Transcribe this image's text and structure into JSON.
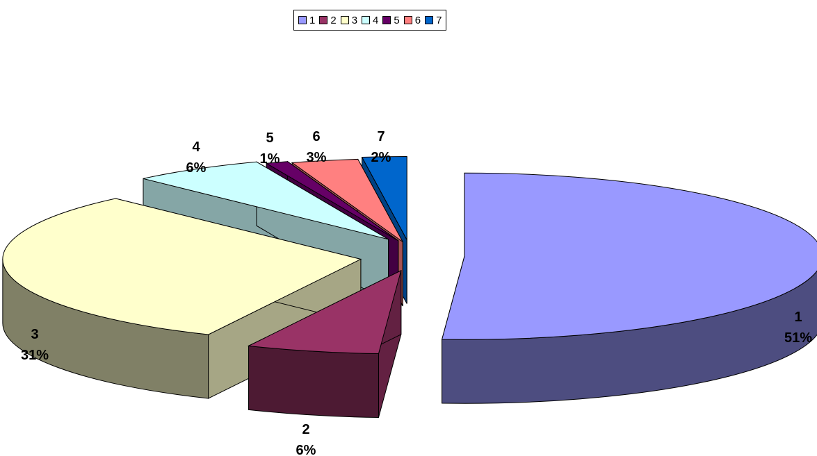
{
  "chart_data": {
    "type": "pie",
    "title": "",
    "three_d": true,
    "exploded": true,
    "legend_position": "top",
    "slices": [
      {
        "label": "1",
        "percent": 51,
        "percent_label": "51%",
        "color": "#9999ff"
      },
      {
        "label": "2",
        "percent": 6,
        "percent_label": "6%",
        "color": "#993366"
      },
      {
        "label": "3",
        "percent": 31,
        "percent_label": "31%",
        "color": "#ffffcc"
      },
      {
        "label": "4",
        "percent": 6,
        "percent_label": "6%",
        "color": "#ccffff"
      },
      {
        "label": "5",
        "percent": 1,
        "percent_label": "1%",
        "color": "#660066"
      },
      {
        "label": "6",
        "percent": 3,
        "percent_label": "3%",
        "color": "#ff8080"
      },
      {
        "label": "7",
        "percent": 2,
        "percent_label": "2%",
        "color": "#0066cc"
      }
    ]
  }
}
